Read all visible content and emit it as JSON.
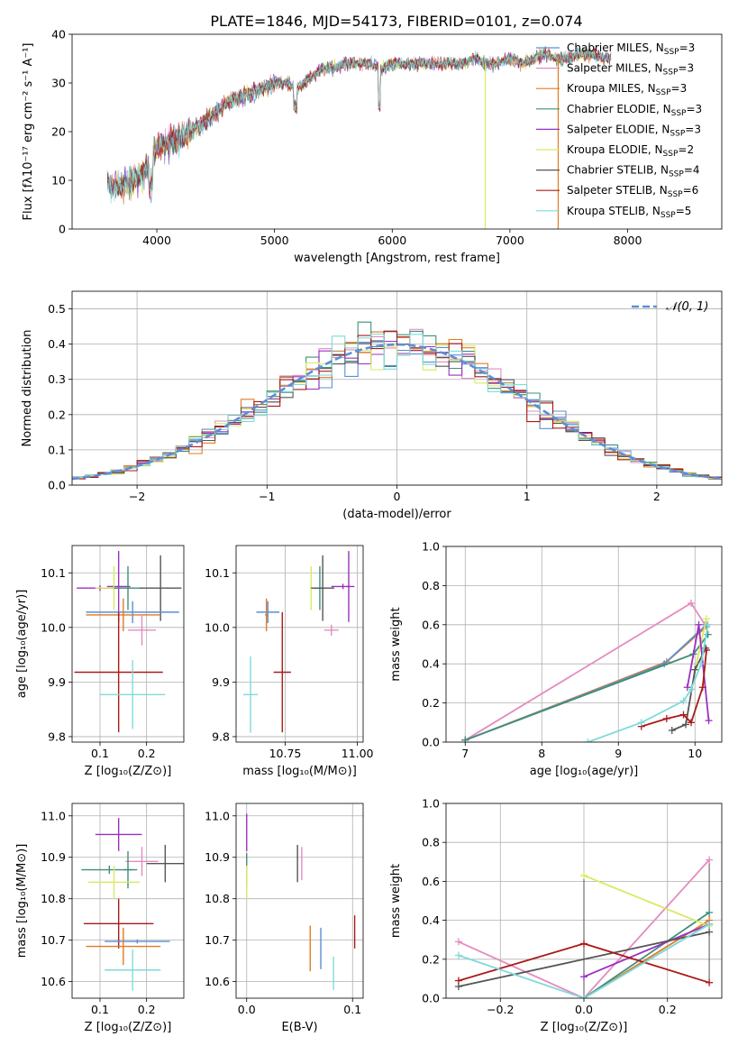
{
  "figure_title": "PLATE=1846, MJD=54173, FIBERID=0101, z=0.074",
  "colors": {
    "chabrier_miles": "#5b8fd6",
    "salpeter_miles": "#e48bbf",
    "kroupa_miles": "#e07b22",
    "chabrier_elodie": "#3f8f7a",
    "salpeter_elodie": "#9b30c0",
    "kroupa_elodie": "#d7ea62",
    "chabrier_stelib": "#555555",
    "salpeter_stelib": "#aa1a1a",
    "kroupa_stelib": "#7fdada",
    "gauss": "#5b8fd6"
  },
  "chart_data": [
    {
      "id": "spectrum",
      "type": "line",
      "title": "PLATE=1846, MJD=54173, FIBERID=0101, z=0.074",
      "xlabel": "wavelength [Angstrom, rest frame]",
      "ylabel": "Flux [fλ10⁻¹⁷ erg cm⁻² s⁻¹ A⁻¹]",
      "xlim": [
        3280,
        8800
      ],
      "ylim": [
        0,
        40
      ],
      "xticks": [
        4000,
        5000,
        6000,
        7000,
        8000
      ],
      "yticks": [
        0,
        10,
        20,
        30,
        40
      ],
      "legend_position": "right",
      "series": [
        {
          "name": "Chabrier MILES, N_SSP=3",
          "name_main": "Chabrier MILES, N",
          "name_sub": "SSP",
          "name_tail": "=3",
          "color_key": "chabrier_miles"
        },
        {
          "name": "Salpeter MILES, N_SSP=3",
          "name_main": "Salpeter MILES, N",
          "name_sub": "SSP",
          "name_tail": "=3",
          "color_key": "salpeter_miles"
        },
        {
          "name": "Kroupa MILES, N_SSP=3",
          "name_main": "Kroupa MILES, N",
          "name_sub": "SSP",
          "name_tail": "=3",
          "color_key": "kroupa_miles"
        },
        {
          "name": "Chabrier ELODIE, N_SSP=3",
          "name_main": "Chabrier ELODIE, N",
          "name_sub": "SSP",
          "name_tail": "=3",
          "color_key": "chabrier_elodie"
        },
        {
          "name": "Salpeter ELODIE, N_SSP=3",
          "name_main": "Salpeter ELODIE, N",
          "name_sub": "SSP",
          "name_tail": "=3",
          "color_key": "salpeter_elodie"
        },
        {
          "name": "Kroupa ELODIE, N_SSP=2",
          "name_main": "Kroupa ELODIE, N",
          "name_sub": "SSP",
          "name_tail": "=2",
          "color_key": "kroupa_elodie"
        },
        {
          "name": "Chabrier STELIB, N_SSP=4",
          "name_main": "Chabrier STELIB, N",
          "name_sub": "SSP",
          "name_tail": "=4",
          "color_key": "chabrier_stelib"
        },
        {
          "name": "Salpeter STELIB, N_SSP=6",
          "name_main": "Salpeter STELIB, N",
          "name_sub": "SSP",
          "name_tail": "=6",
          "color_key": "salpeter_stelib"
        },
        {
          "name": "Kroupa STELIB, N_SSP=5",
          "name_main": "Kroupa STELIB, N",
          "name_sub": "SSP",
          "name_tail": "=5",
          "color_key": "kroupa_stelib"
        }
      ],
      "continuum": [
        [
          3580,
          9
        ],
        [
          3700,
          9
        ],
        [
          3800,
          10
        ],
        [
          3900,
          12
        ],
        [
          3950,
          15
        ],
        [
          4000,
          17
        ],
        [
          4100,
          18
        ],
        [
          4200,
          19
        ],
        [
          4300,
          20
        ],
        [
          4400,
          22
        ],
        [
          4500,
          24
        ],
        [
          4600,
          26
        ],
        [
          4700,
          27
        ],
        [
          4800,
          28
        ],
        [
          4900,
          29
        ],
        [
          5000,
          30
        ],
        [
          5100,
          30
        ],
        [
          5200,
          29
        ],
        [
          5300,
          31
        ],
        [
          5400,
          33
        ],
        [
          5500,
          33
        ],
        [
          5600,
          34
        ],
        [
          5700,
          34
        ],
        [
          5800,
          34
        ],
        [
          5900,
          33
        ],
        [
          6000,
          34
        ],
        [
          6100,
          34
        ],
        [
          6200,
          34
        ],
        [
          6300,
          34
        ],
        [
          6400,
          34
        ],
        [
          6500,
          34
        ],
        [
          6600,
          34
        ],
        [
          6700,
          35
        ],
        [
          6800,
          34
        ],
        [
          6900,
          34
        ],
        [
          7000,
          35
        ],
        [
          7100,
          34
        ],
        [
          7200,
          35
        ],
        [
          7300,
          36
        ],
        [
          7400,
          35
        ],
        [
          7500,
          35
        ],
        [
          7600,
          36
        ],
        [
          7700,
          36
        ],
        [
          7800,
          35
        ]
      ],
      "dropouts": [
        {
          "x": 6790,
          "color_key": "kroupa_elodie"
        },
        {
          "x": 7410,
          "color_key": "kroupa_miles"
        }
      ]
    },
    {
      "id": "residuals",
      "type": "histogram",
      "xlabel": "(data-model)/error",
      "ylabel": "Normed distribution",
      "xlim": [
        -2.5,
        2.5
      ],
      "ylim": [
        0,
        0.55
      ],
      "xticks": [
        -2,
        -1,
        0,
        1,
        2
      ],
      "yticks": [
        0.0,
        0.1,
        0.2,
        0.3,
        0.4,
        0.5
      ],
      "grid": true,
      "legend_position": "top-right",
      "legend_label": "𝒩(0, 1)",
      "bin_width": 0.1,
      "reference": "normal pdf, mean 0, sigma 1"
    },
    {
      "id": "age_vs_Z",
      "type": "errorbar",
      "xlabel": "Z [log₁₀(Z/Z⊙)]",
      "ylabel": "age  [log₁₀(age/yr)]",
      "xlim": [
        0.04,
        0.28
      ],
      "ylim": [
        9.79,
        10.15
      ],
      "xticks": [
        0.1,
        0.2
      ],
      "yticks": [
        9.8,
        9.9,
        10.0,
        10.1
      ],
      "points": [
        {
          "x": 0.1,
          "xerr": 0.05,
          "y": 10.072,
          "yerr": 0.005,
          "color_key": "salpeter_elodie"
        },
        {
          "x": 0.14,
          "xerr": 0.025,
          "y": 10.075,
          "yerr": 0.065,
          "color_key": "salpeter_elodie"
        },
        {
          "x": 0.13,
          "xerr": 0.04,
          "y": 10.072,
          "yerr": 0.04,
          "color_key": "kroupa_elodie"
        },
        {
          "x": 0.16,
          "xerr": 0.03,
          "y": 10.072,
          "yerr": 0.04,
          "color_key": "chabrier_elodie"
        },
        {
          "x": 0.23,
          "xerr": 0.045,
          "y": 10.072,
          "yerr": 0.06,
          "color_key": "chabrier_stelib"
        },
        {
          "x": 0.17,
          "xerr": 0.1,
          "y": 10.028,
          "yerr": 0.02,
          "color_key": "chabrier_miles"
        },
        {
          "x": 0.15,
          "xerr": 0.08,
          "y": 10.023,
          "yerr": 0.03,
          "color_key": "kroupa_miles"
        },
        {
          "x": 0.19,
          "xerr": 0.03,
          "y": 9.995,
          "yerr": 0.028,
          "color_key": "salpeter_miles"
        },
        {
          "x": 0.14,
          "xerr": 0.095,
          "y": 9.918,
          "yerr": 0.11,
          "color_key": "salpeter_stelib"
        },
        {
          "x": 0.17,
          "xerr": 0.07,
          "y": 9.877,
          "yerr": 0.063,
          "color_key": "kroupa_stelib"
        }
      ]
    },
    {
      "id": "age_vs_mass",
      "type": "errorbar",
      "xlabel": "mass [log₁₀(M/M⊙)]",
      "ylabel": "",
      "xlim": [
        10.58,
        11.02
      ],
      "ylim": [
        9.79,
        10.15
      ],
      "xticks": [
        10.75,
        11.0
      ],
      "yticks": [
        9.8,
        9.9,
        10.0,
        10.1
      ],
      "points": [
        {
          "x": 10.95,
          "xerr": 0.04,
          "y": 10.075,
          "yerr": 0.005,
          "color_key": "salpeter_elodie"
        },
        {
          "x": 10.97,
          "xerr": 0.005,
          "y": 10.075,
          "yerr": 0.065,
          "color_key": "salpeter_elodie"
        },
        {
          "x": 10.84,
          "xerr": 0.005,
          "y": 10.072,
          "yerr": 0.04,
          "color_key": "kroupa_elodie"
        },
        {
          "x": 10.87,
          "xerr": 0.02,
          "y": 10.072,
          "yerr": 0.04,
          "color_key": "chabrier_elodie"
        },
        {
          "x": 10.88,
          "xerr": 0.04,
          "y": 10.072,
          "yerr": 0.06,
          "color_key": "chabrier_stelib"
        },
        {
          "x": 10.69,
          "xerr": 0.04,
          "y": 10.028,
          "yerr": 0.02,
          "color_key": "chabrier_miles"
        },
        {
          "x": 10.685,
          "xerr": 0.005,
          "y": 10.023,
          "yerr": 0.03,
          "color_key": "kroupa_miles"
        },
        {
          "x": 10.91,
          "xerr": 0.025,
          "y": 9.995,
          "yerr": 0.01,
          "color_key": "salpeter_miles"
        },
        {
          "x": 10.74,
          "xerr": 0.03,
          "y": 9.918,
          "yerr": 0.11,
          "color_key": "salpeter_stelib"
        },
        {
          "x": 10.63,
          "xerr": 0.025,
          "y": 9.877,
          "yerr": 0.07,
          "color_key": "kroupa_stelib"
        }
      ]
    },
    {
      "id": "mass_weight_vs_age",
      "type": "line",
      "xlabel": "age  [log₁₀(age/yr)]",
      "ylabel": "mass weight",
      "xlim": [
        6.75,
        10.35
      ],
      "ylim": [
        0,
        1
      ],
      "xticks": [
        7,
        8,
        9,
        10
      ],
      "yticks": [
        0.0,
        0.2,
        0.4,
        0.6,
        0.8,
        1.0
      ],
      "series": [
        {
          "color_key": "salpeter_miles",
          "points": [
            [
              7.0,
              0.01
            ],
            [
              9.95,
              0.71
            ],
            [
              10.13,
              0.6
            ]
          ]
        },
        {
          "color_key": "kroupa_miles",
          "points": [
            [
              7.0,
              0.01
            ],
            [
              9.63,
              0.41
            ],
            [
              10.15,
              0.59
            ]
          ]
        },
        {
          "color_key": "chabrier_miles",
          "points": [
            [
              7.0,
              0.01
            ],
            [
              9.6,
              0.4
            ],
            [
              10.15,
              0.6
            ]
          ]
        },
        {
          "color_key": "chabrier_elodie",
          "points": [
            [
              7.0,
              0.01
            ],
            [
              9.98,
              0.45
            ],
            [
              10.17,
              0.55
            ]
          ]
        },
        {
          "color_key": "kroupa_elodie",
          "points": [
            [
              10.0,
              0.37
            ],
            [
              10.15,
              0.63
            ]
          ]
        },
        {
          "color_key": "salpeter_elodie",
          "points": [
            [
              9.9,
              0.28
            ],
            [
              10.05,
              0.6
            ],
            [
              10.18,
              0.11
            ]
          ]
        },
        {
          "color_key": "chabrier_stelib",
          "points": [
            [
              9.7,
              0.06
            ],
            [
              9.88,
              0.09
            ],
            [
              10.0,
              0.37
            ],
            [
              10.14,
              0.48
            ]
          ]
        },
        {
          "color_key": "salpeter_stelib",
          "points": [
            [
              9.3,
              0.08
            ],
            [
              9.63,
              0.12
            ],
            [
              9.85,
              0.14
            ],
            [
              9.95,
              0.1
            ],
            [
              10.1,
              0.28
            ],
            [
              10.15,
              0.47
            ]
          ]
        },
        {
          "color_key": "kroupa_stelib",
          "points": [
            [
              8.6,
              0.0
            ],
            [
              9.3,
              0.1
            ],
            [
              9.85,
              0.21
            ],
            [
              9.95,
              0.27
            ],
            [
              10.08,
              0.4
            ],
            [
              10.17,
              0.6
            ]
          ]
        }
      ]
    },
    {
      "id": "mass_vs_Z",
      "type": "errorbar",
      "xlabel": "Z [log₁₀(Z/Z⊙)]",
      "ylabel": "mass [log₁₀(M/M⊙)]",
      "xlim": [
        0.04,
        0.28
      ],
      "ylim": [
        10.56,
        11.03
      ],
      "xticks": [
        0.1,
        0.2
      ],
      "yticks": [
        10.6,
        10.7,
        10.8,
        10.9,
        11.0
      ],
      "points": [
        {
          "x": 0.14,
          "xerr": 0.05,
          "y": 10.955,
          "yerr": 0.04,
          "color_key": "salpeter_elodie"
        },
        {
          "x": 0.19,
          "xerr": 0.035,
          "y": 10.89,
          "yerr": 0.035,
          "color_key": "salpeter_miles"
        },
        {
          "x": 0.24,
          "xerr": 0.04,
          "y": 10.885,
          "yerr": 0.045,
          "color_key": "chabrier_stelib"
        },
        {
          "x": 0.12,
          "xerr": 0.06,
          "y": 10.87,
          "yerr": 0.01,
          "color_key": "chabrier_elodie"
        },
        {
          "x": 0.16,
          "xerr": 0.01,
          "y": 10.87,
          "yerr": 0.045,
          "color_key": "chabrier_elodie"
        },
        {
          "x": 0.13,
          "xerr": 0.055,
          "y": 10.84,
          "yerr": 0.04,
          "color_key": "kroupa_elodie"
        },
        {
          "x": 0.14,
          "xerr": 0.075,
          "y": 10.74,
          "yerr": 0.06,
          "color_key": "salpeter_stelib"
        },
        {
          "x": 0.18,
          "xerr": 0.07,
          "y": 10.697,
          "yerr": 0.005,
          "color_key": "chabrier_miles"
        },
        {
          "x": 0.15,
          "xerr": 0.08,
          "y": 10.685,
          "yerr": 0.045,
          "color_key": "kroupa_miles"
        },
        {
          "x": 0.17,
          "xerr": 0.06,
          "y": 10.628,
          "yerr": 0.05,
          "color_key": "kroupa_stelib"
        }
      ]
    },
    {
      "id": "mass_vs_ebv",
      "type": "errorbar",
      "xlabel": "E(B-V)",
      "ylabel": "",
      "xlim": [
        -0.01,
        0.11
      ],
      "ylim": [
        10.56,
        11.03
      ],
      "xticks": [
        0.0,
        0.1
      ],
      "yticks": [
        10.6,
        10.7,
        10.8,
        10.9,
        11.0
      ],
      "points": [
        {
          "x": 0.0,
          "xerr": 0.0,
          "y": 10.96,
          "yerr": 0.045,
          "color_key": "salpeter_elodie"
        },
        {
          "x": 0.0,
          "xerr": 0.0,
          "y": 10.87,
          "yerr": 0.04,
          "color_key": "chabrier_elodie"
        },
        {
          "x": 0.0,
          "xerr": 0.0,
          "y": 10.84,
          "yerr": 0.04,
          "color_key": "kroupa_elodie"
        },
        {
          "x": 0.048,
          "xerr": 0.0,
          "y": 10.885,
          "yerr": 0.045,
          "color_key": "chabrier_stelib"
        },
        {
          "x": 0.052,
          "xerr": 0.0,
          "y": 10.885,
          "yerr": 0.04,
          "color_key": "salpeter_miles"
        },
        {
          "x": 0.06,
          "xerr": 0.0,
          "y": 10.68,
          "yerr": 0.055,
          "color_key": "kroupa_miles"
        },
        {
          "x": 0.07,
          "xerr": 0.0,
          "y": 10.68,
          "yerr": 0.05,
          "color_key": "chabrier_miles"
        },
        {
          "x": 0.082,
          "xerr": 0.0,
          "y": 10.62,
          "yerr": 0.04,
          "color_key": "kroupa_stelib"
        },
        {
          "x": 0.102,
          "xerr": 0.0,
          "y": 10.72,
          "yerr": 0.04,
          "color_key": "salpeter_stelib"
        }
      ]
    },
    {
      "id": "mass_weight_vs_Z",
      "type": "line",
      "xlabel": "Z [log₁₀(Z/Z⊙)]",
      "ylabel": "mass weight",
      "xlim": [
        -0.33,
        0.33
      ],
      "ylim": [
        0,
        1
      ],
      "xticks": [
        -0.2,
        0.0,
        0.2
      ],
      "yticks": [
        0.0,
        0.2,
        0.4,
        0.6,
        0.8,
        1.0
      ],
      "series": [
        {
          "color_key": "salpeter_miles",
          "points": [
            [
              -0.3,
              0.29
            ],
            [
              0.0,
              0.0
            ],
            [
              0.3,
              0.71
            ]
          ]
        },
        {
          "color_key": "kroupa_miles",
          "points": [
            [
              0.0,
              0.0
            ],
            [
              0.3,
              0.4
            ]
          ]
        },
        {
          "color_key": "chabrier_miles",
          "points": [
            [
              0.0,
              0.0
            ],
            [
              0.3,
              0.38
            ]
          ]
        },
        {
          "color_key": "chabrier_elodie",
          "points": [
            [
              0.0,
              0.0
            ],
            [
              0.3,
              0.44
            ]
          ]
        },
        {
          "color_key": "kroupa_elodie",
          "points": [
            [
              0.0,
              0.63
            ],
            [
              0.3,
              0.37
            ]
          ]
        },
        {
          "color_key": "salpeter_elodie",
          "points": [
            [
              0.0,
              0.11
            ],
            [
              0.3,
              0.38
            ]
          ]
        },
        {
          "color_key": "chabrier_stelib",
          "points": [
            [
              -0.3,
              0.06
            ],
            [
              0.3,
              0.34
            ]
          ]
        },
        {
          "color_key": "salpeter_stelib",
          "points": [
            [
              -0.3,
              0.09
            ],
            [
              0.0,
              0.28
            ],
            [
              0.3,
              0.08
            ]
          ]
        },
        {
          "color_key": "kroupa_stelib",
          "points": [
            [
              -0.3,
              0.22
            ],
            [
              0.0,
              0.0
            ],
            [
              0.3,
              0.38
            ]
          ]
        }
      ],
      "vertical_spread": [
        {
          "x": 0.0,
          "from": 0.0,
          "to": 0.63
        },
        {
          "x": 0.3,
          "from": 0.08,
          "to": 0.71
        }
      ]
    }
  ]
}
